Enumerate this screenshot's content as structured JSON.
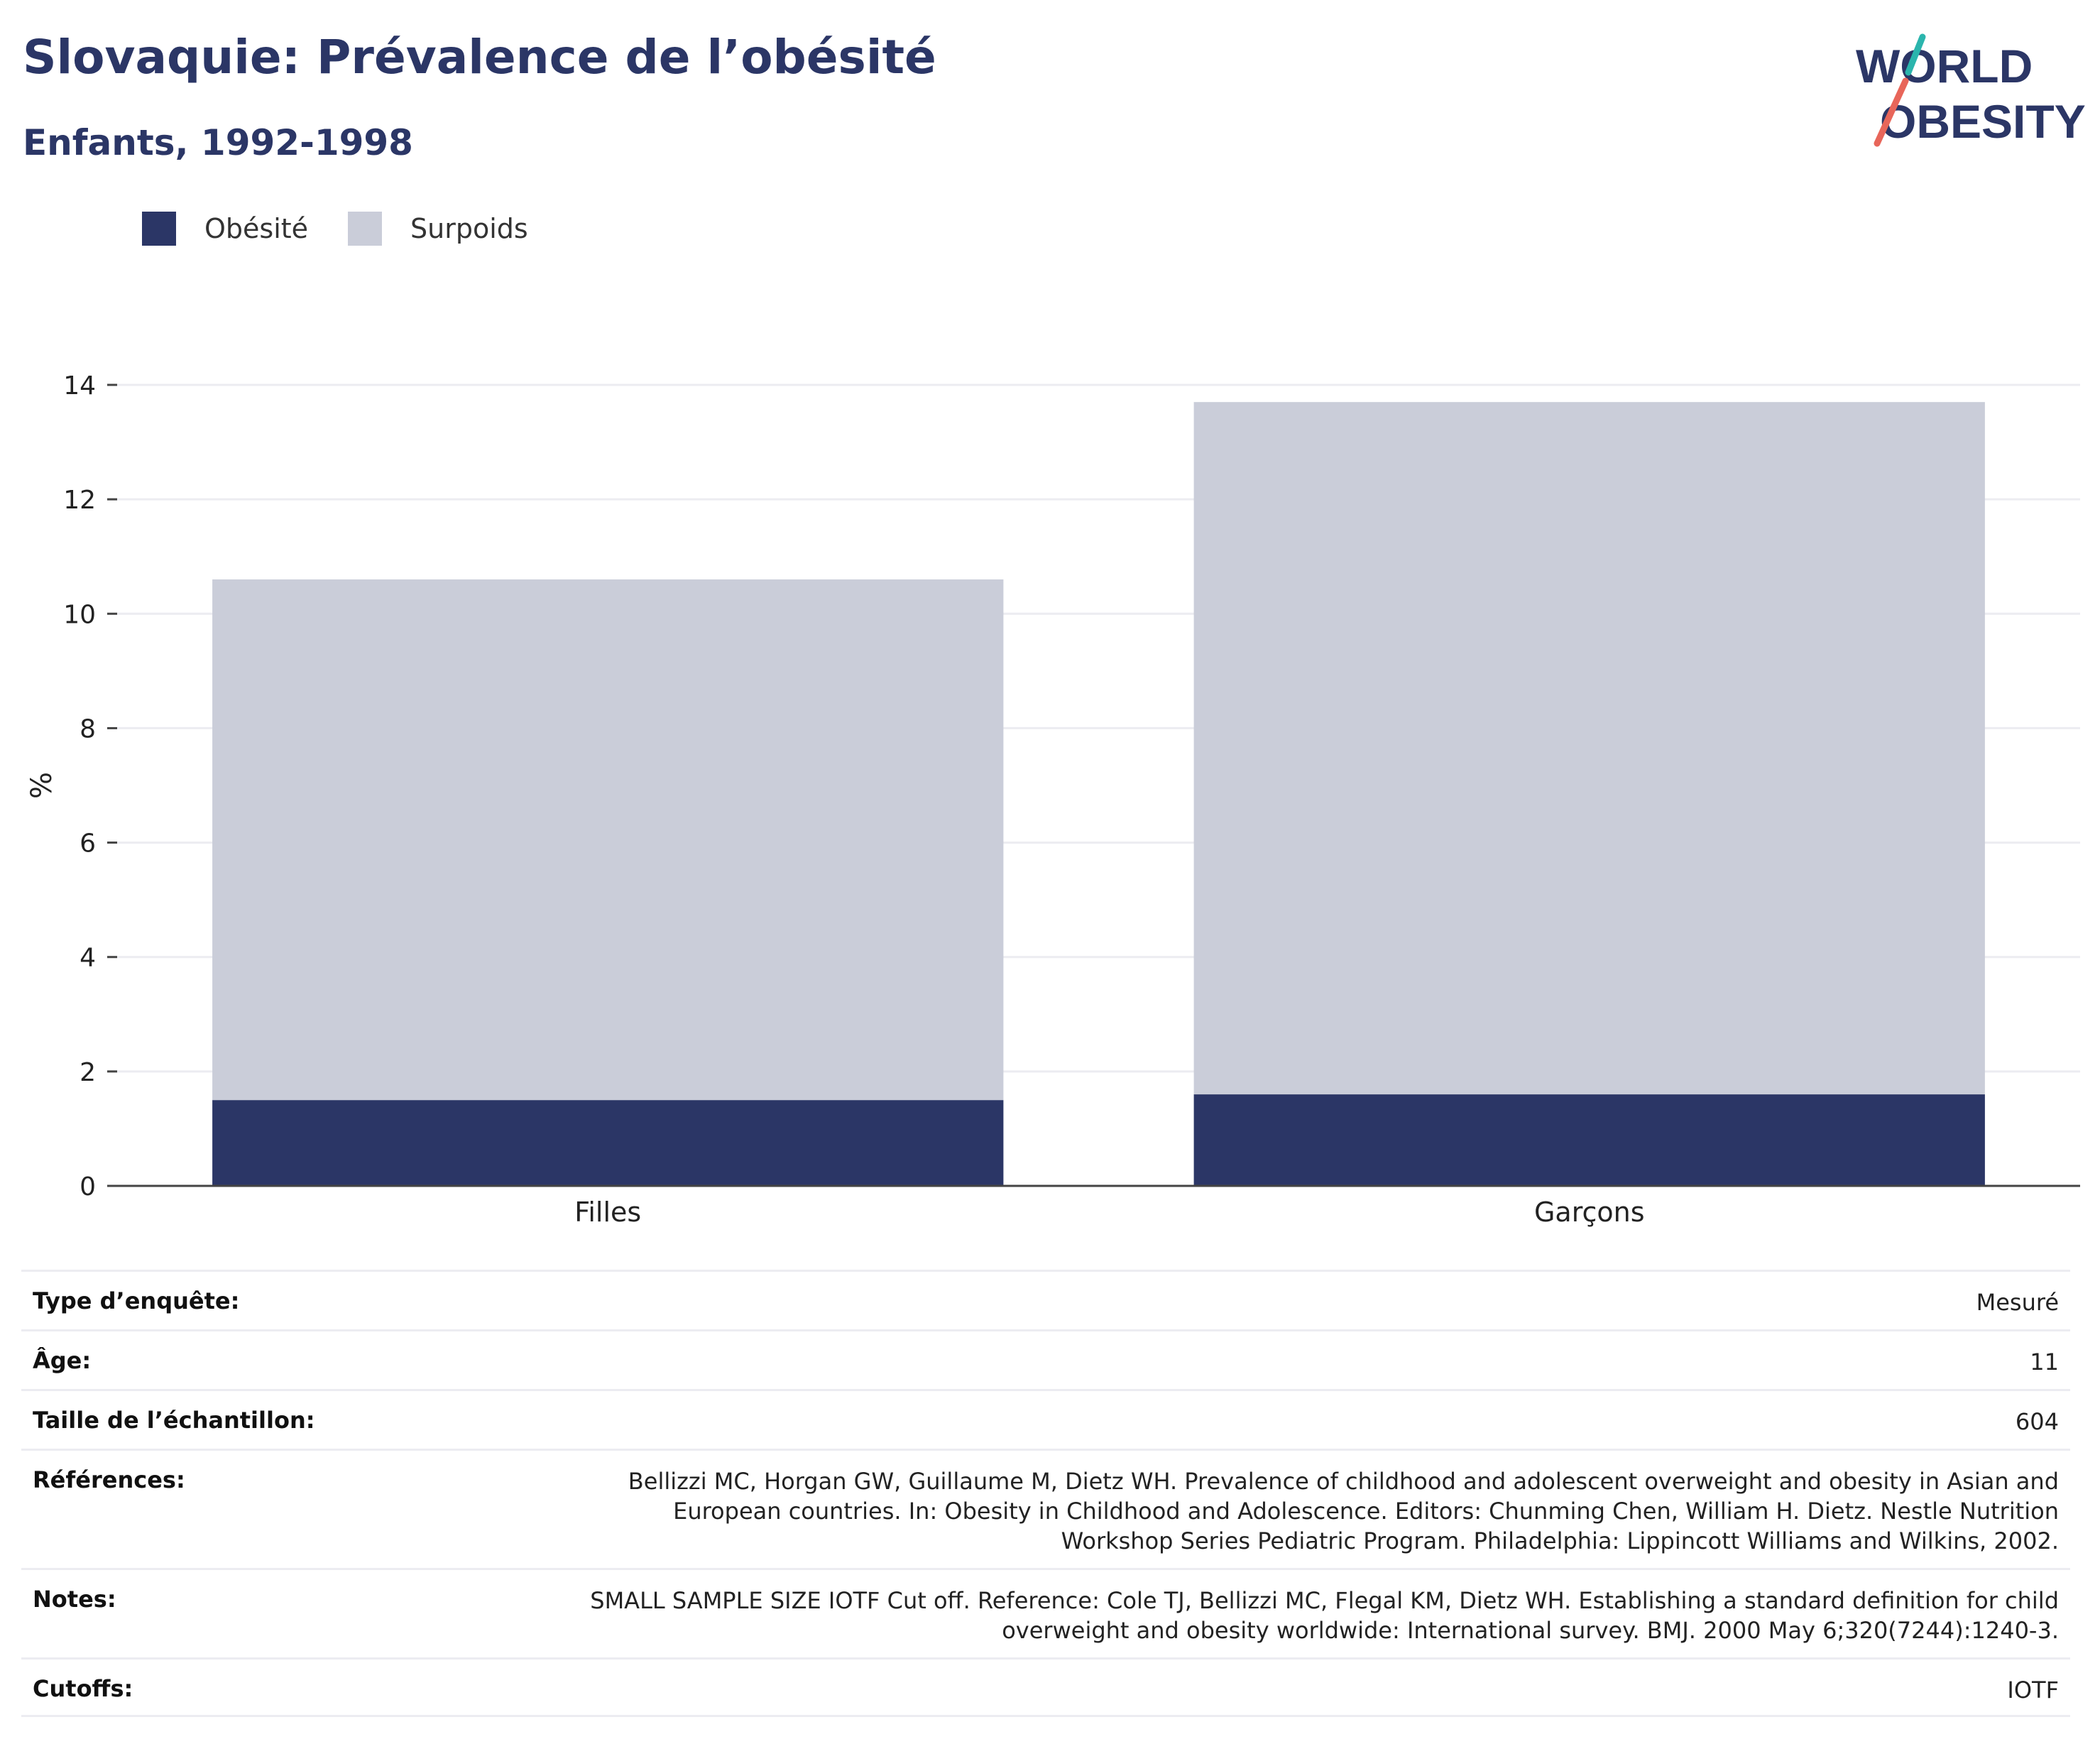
{
  "header": {
    "title": "Slovaquie: Prévalence de l’obésité",
    "subtitle": "Enfants, 1992-1998"
  },
  "logo": {
    "line1": "WORLD",
    "line2": "OBESITY"
  },
  "legend": [
    {
      "label": "Obésité",
      "color": "#2b3666"
    },
    {
      "label": "Surpoids",
      "color": "#cacdd9"
    }
  ],
  "chart_data": {
    "type": "bar",
    "stacked": true,
    "categories": [
      "Filles",
      "Garçons"
    ],
    "series": [
      {
        "name": "Obésité",
        "values": [
          1.5,
          1.6
        ],
        "color": "#2b3666"
      },
      {
        "name": "Surpoids",
        "values": [
          9.1,
          12.1
        ],
        "color": "#cacdd9"
      }
    ],
    "ylabel": "%",
    "ylim": [
      0,
      14
    ],
    "yticks": [
      0,
      2,
      4,
      6,
      8,
      10,
      12,
      14
    ],
    "grid": true
  },
  "info": [
    {
      "label": "Type d’enquête:",
      "value": "Mesuré"
    },
    {
      "label": "Âge:",
      "value": "11"
    },
    {
      "label": "Taille de l’échantillon:",
      "value": "604"
    },
    {
      "label": "Références:",
      "value": "Bellizzi MC, Horgan GW, Guillaume M, Dietz WH. Prevalence of childhood and adolescent overweight and obesity in Asian and European countries. In: Obesity in Childhood and Adolescence. Editors: Chunming Chen, William H. Dietz. Nestle Nutrition Workshop Series Pediatric Program. Philadelphia: Lippincott Williams and Wilkins, 2002."
    },
    {
      "label": "Notes:",
      "value": "SMALL SAMPLE SIZE IOTF Cut off. Reference: Cole TJ, Bellizzi MC, Flegal KM, Dietz WH. Establishing a standard definition for child overweight and obesity worldwide: International survey. BMJ. 2000 May 6;320(7244):1240-3."
    },
    {
      "label": "Cutoffs:",
      "value": "IOTF"
    }
  ]
}
